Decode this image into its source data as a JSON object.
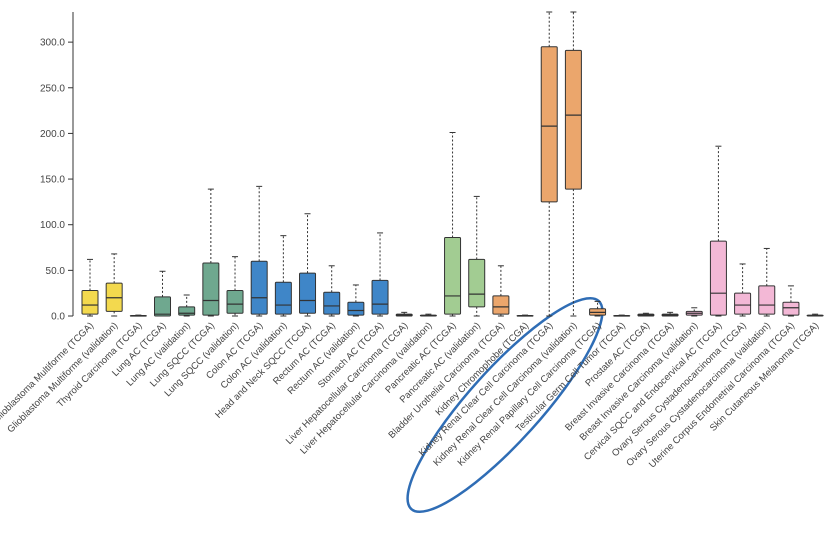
{
  "chart_data": {
    "type": "box",
    "categories": [
      "Glioblastoma Multiforme (TCGA)",
      "Glioblastoma Multiforme (validation)",
      "Thyroid Carcinoma (TCGA)",
      "Lung AC (TCGA)",
      "Lung AC (validation)",
      "Lung SQCC (TCGA)",
      "Lung SQCC (validation)",
      "Colon AC (TCGA)",
      "Colon AC (validation)",
      "Head and Neck SQCC (TCGA)",
      "Rectum AC (TCGA)",
      "Rectum AC (validation)",
      "Stomach AC (TCGA)",
      "Liver Hepatocellular Carcinoma (TCGA)",
      "Liver Hepatocellular Carcinoma (validation)",
      "Pancreatic AC (TCGA)",
      "Pancreatic AC (validation)",
      "Bladder Urothelial Carcinoma (TCGA)",
      "Kidney Chromophobe (TCGA)",
      "Kidney Renal Clear Cell Carcinoma (TCGA)",
      "Kidney Renal Clear Cell Carcinoma (validation)",
      "Kidney Renal Papillary Cell Carcinoma (TCGA)",
      "Testicular Germ Cell Tumor (TCGA)",
      "Prostate AC (TCGA)",
      "Breast Invasive Carcinoma (TCGA)",
      "Breast Invasive Carcinoma (validation)",
      "Cervical SQCC and Endocervical AC (TCGA)",
      "Ovary Serous Cystadenocarcinoma (TCGA)",
      "Ovary Serous Cystadenocarcinoma (validation)",
      "Uterine Corpus Endometrial Carcinoma (TCGA)",
      "Skin Cutaneous Melanoma (TCGA)"
    ],
    "min": [
      0,
      0,
      0,
      0,
      0,
      0,
      0,
      0,
      0,
      0,
      0,
      0,
      0,
      0,
      0,
      0,
      0,
      0,
      0,
      0,
      0,
      0,
      0,
      0,
      0,
      0,
      0,
      0,
      0,
      0,
      0
    ],
    "q1": [
      2,
      5,
      0,
      0,
      1,
      1,
      3,
      2,
      2,
      3,
      2,
      1,
      2,
      0,
      0,
      2,
      10,
      2,
      0,
      125,
      139,
      1,
      0,
      0,
      0,
      1,
      1,
      2,
      2,
      1,
      0
    ],
    "median": [
      12,
      20,
      0,
      2,
      3,
      17,
      13,
      20,
      12,
      17,
      11,
      6,
      13,
      1,
      0.5,
      22,
      24,
      10,
      0,
      208,
      220,
      4,
      0,
      1,
      1,
      3,
      25,
      12,
      12,
      9,
      0.5
    ],
    "q3": [
      28,
      36,
      0.5,
      21,
      10,
      58,
      28,
      60,
      37,
      47,
      26,
      15,
      39,
      2,
      1,
      86,
      62,
      22,
      0.5,
      295,
      291,
      8,
      0.5,
      2,
      2,
      5,
      82,
      25,
      33,
      15,
      1
    ],
    "max": [
      62,
      68,
      1,
      49,
      23,
      139,
      65,
      142,
      88,
      112,
      55,
      34,
      91,
      4,
      2,
      201,
      131,
      55,
      1,
      333,
      333,
      16,
      1,
      3,
      4,
      9,
      186,
      57,
      74,
      33,
      2
    ],
    "colors": [
      "#f3d94e",
      "#f3d94e",
      "#f3d94e",
      "#6fa88f",
      "#6fa88f",
      "#6fa88f",
      "#6fa88f",
      "#3f86c8",
      "#3f86c8",
      "#3f86c8",
      "#3f86c8",
      "#3f86c8",
      "#3f86c8",
      "#8a8a8a",
      "#8a8a8a",
      "#a2cc92",
      "#a2cc92",
      "#eba66c",
      "#eba66c",
      "#eba66c",
      "#eba66c",
      "#eba66c",
      "#b0b0b0",
      "#b0b0b0",
      "#b0b0b0",
      "#f3b8d6",
      "#f3b8d6",
      "#f3b8d6",
      "#f3b8d6",
      "#f3b8d6",
      "#8a8a8a"
    ],
    "ylim": [
      0,
      333
    ],
    "yticks": [
      {
        "value": 0,
        "label": "0.0"
      },
      {
        "value": 50,
        "label": "50.0"
      },
      {
        "value": 100,
        "label": "100.0"
      },
      {
        "value": 150,
        "label": "150.0"
      },
      {
        "value": 200,
        "label": "200.0"
      },
      {
        "value": 250,
        "label": "250.0"
      },
      {
        "value": 300,
        "label": "300.0"
      }
    ]
  }
}
